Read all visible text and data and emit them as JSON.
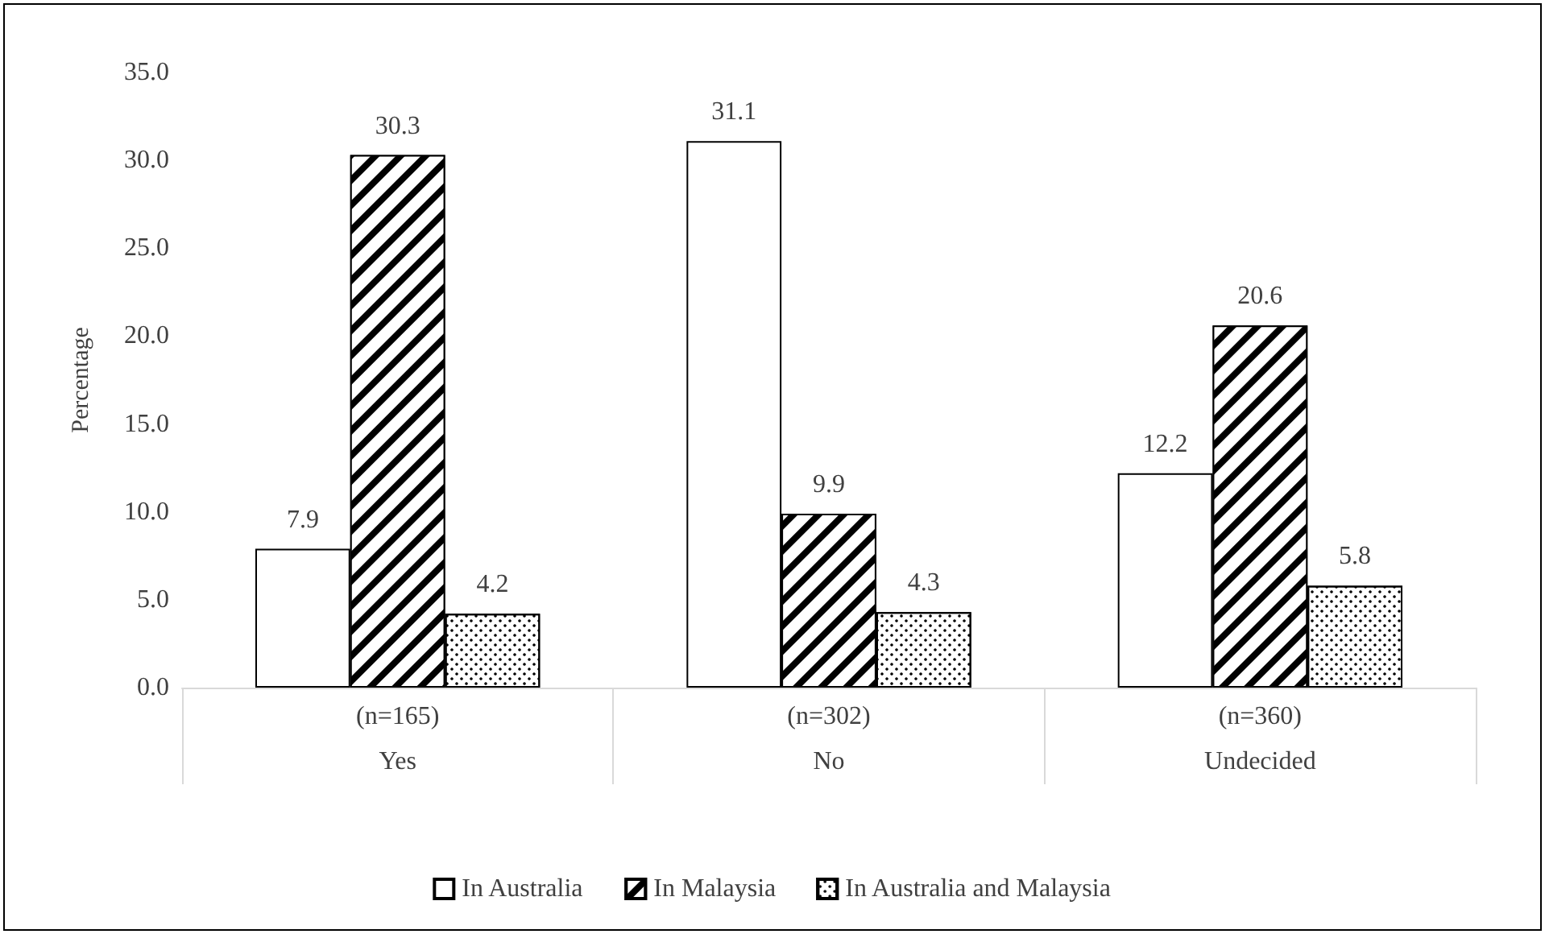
{
  "chart_data": {
    "type": "bar",
    "ylabel": "Percentage",
    "categories": [
      "Yes",
      "No",
      "Undecided"
    ],
    "annotations": [
      "(n=165)",
      "(n=302)",
      "(n=360)"
    ],
    "series": [
      {
        "name": "In Australia",
        "color": "#ffffff",
        "values": [
          7.9,
          31.1,
          12.2
        ]
      },
      {
        "name": "In Malaysia",
        "color": "#000000",
        "values": [
          30.3,
          9.9,
          20.6
        ]
      },
      {
        "name": "In Australia and Malaysia",
        "color": "#ffffff",
        "values": [
          4.2,
          4.3,
          5.8
        ]
      }
    ],
    "ylim": [
      0,
      35
    ],
    "yticks": [
      {
        "value": 0,
        "label": "0.0"
      },
      {
        "value": 5,
        "label": "5.0"
      },
      {
        "value": 10,
        "label": "10.0"
      },
      {
        "value": 15,
        "label": "15.0"
      },
      {
        "value": 20,
        "label": "20.0"
      },
      {
        "value": 25,
        "label": "25.0"
      },
      {
        "value": 30,
        "label": "30.0"
      },
      {
        "value": 35,
        "label": "35.0"
      }
    ],
    "data_labels": true,
    "legend": "bottom",
    "grid": false
  }
}
